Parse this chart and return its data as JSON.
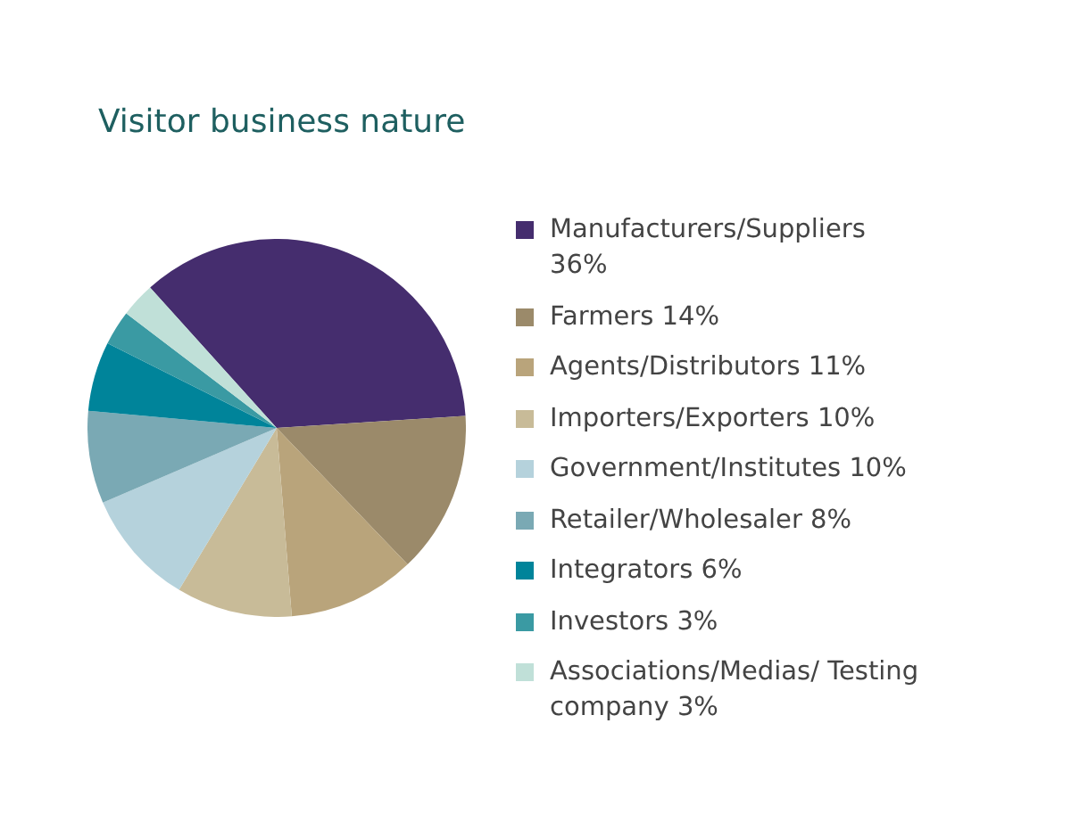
{
  "chart_data": {
    "type": "pie",
    "title": "Visitor business nature",
    "categories": [
      "Manufacturers/Suppliers 36%",
      "Farmers 14%",
      "Agents/Distributors 11%",
      "Importers/Exporters 10%",
      "Government/Institutes 10%",
      "Retailer/Wholesaler 8%",
      "Integrators 6%",
      "Investors 3%",
      "Associations/Medias/ Testing company 3%"
    ],
    "values": [
      36,
      14,
      11,
      10,
      10,
      8,
      6,
      3,
      3
    ],
    "colors": [
      "#452d6e",
      "#9b8a6a",
      "#b9a47b",
      "#c8bb98",
      "#b5d2dc",
      "#7aa9b4",
      "#00849a",
      "#3a9aa3",
      "#c0e0d8"
    ],
    "legend": "right"
  }
}
